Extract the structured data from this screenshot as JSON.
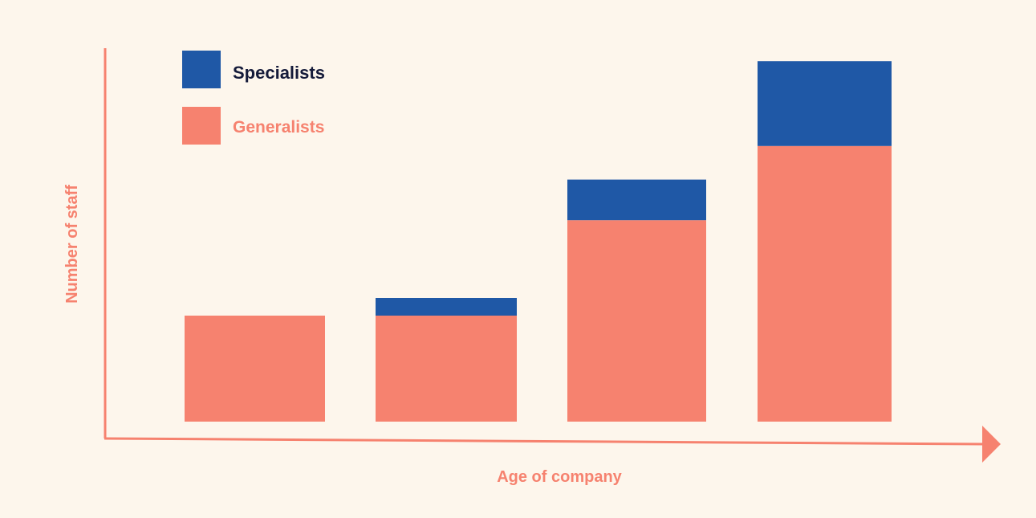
{
  "colors": {
    "background": "#fdf6ec",
    "specialists": "#1f58a6",
    "generalists": "#f6826f",
    "axis": "#f6826f",
    "legend_specialists_text": "#151b3a",
    "legend_generalists_text": "#f6826f"
  },
  "chart_data": {
    "type": "bar",
    "stacked": true,
    "categories": [
      "",
      "",
      "",
      ""
    ],
    "series": [
      {
        "name": "Generalists",
        "values": [
          3.0,
          3.0,
          5.7,
          7.8
        ]
      },
      {
        "name": "Specialists",
        "values": [
          0.0,
          0.5,
          1.15,
          2.4
        ]
      }
    ],
    "xlabel": "Age of company",
    "ylabel": "Number of staff",
    "ylim": [
      0,
      10.5
    ],
    "grid": false,
    "legend": "top-left",
    "axis_ticks": false
  }
}
